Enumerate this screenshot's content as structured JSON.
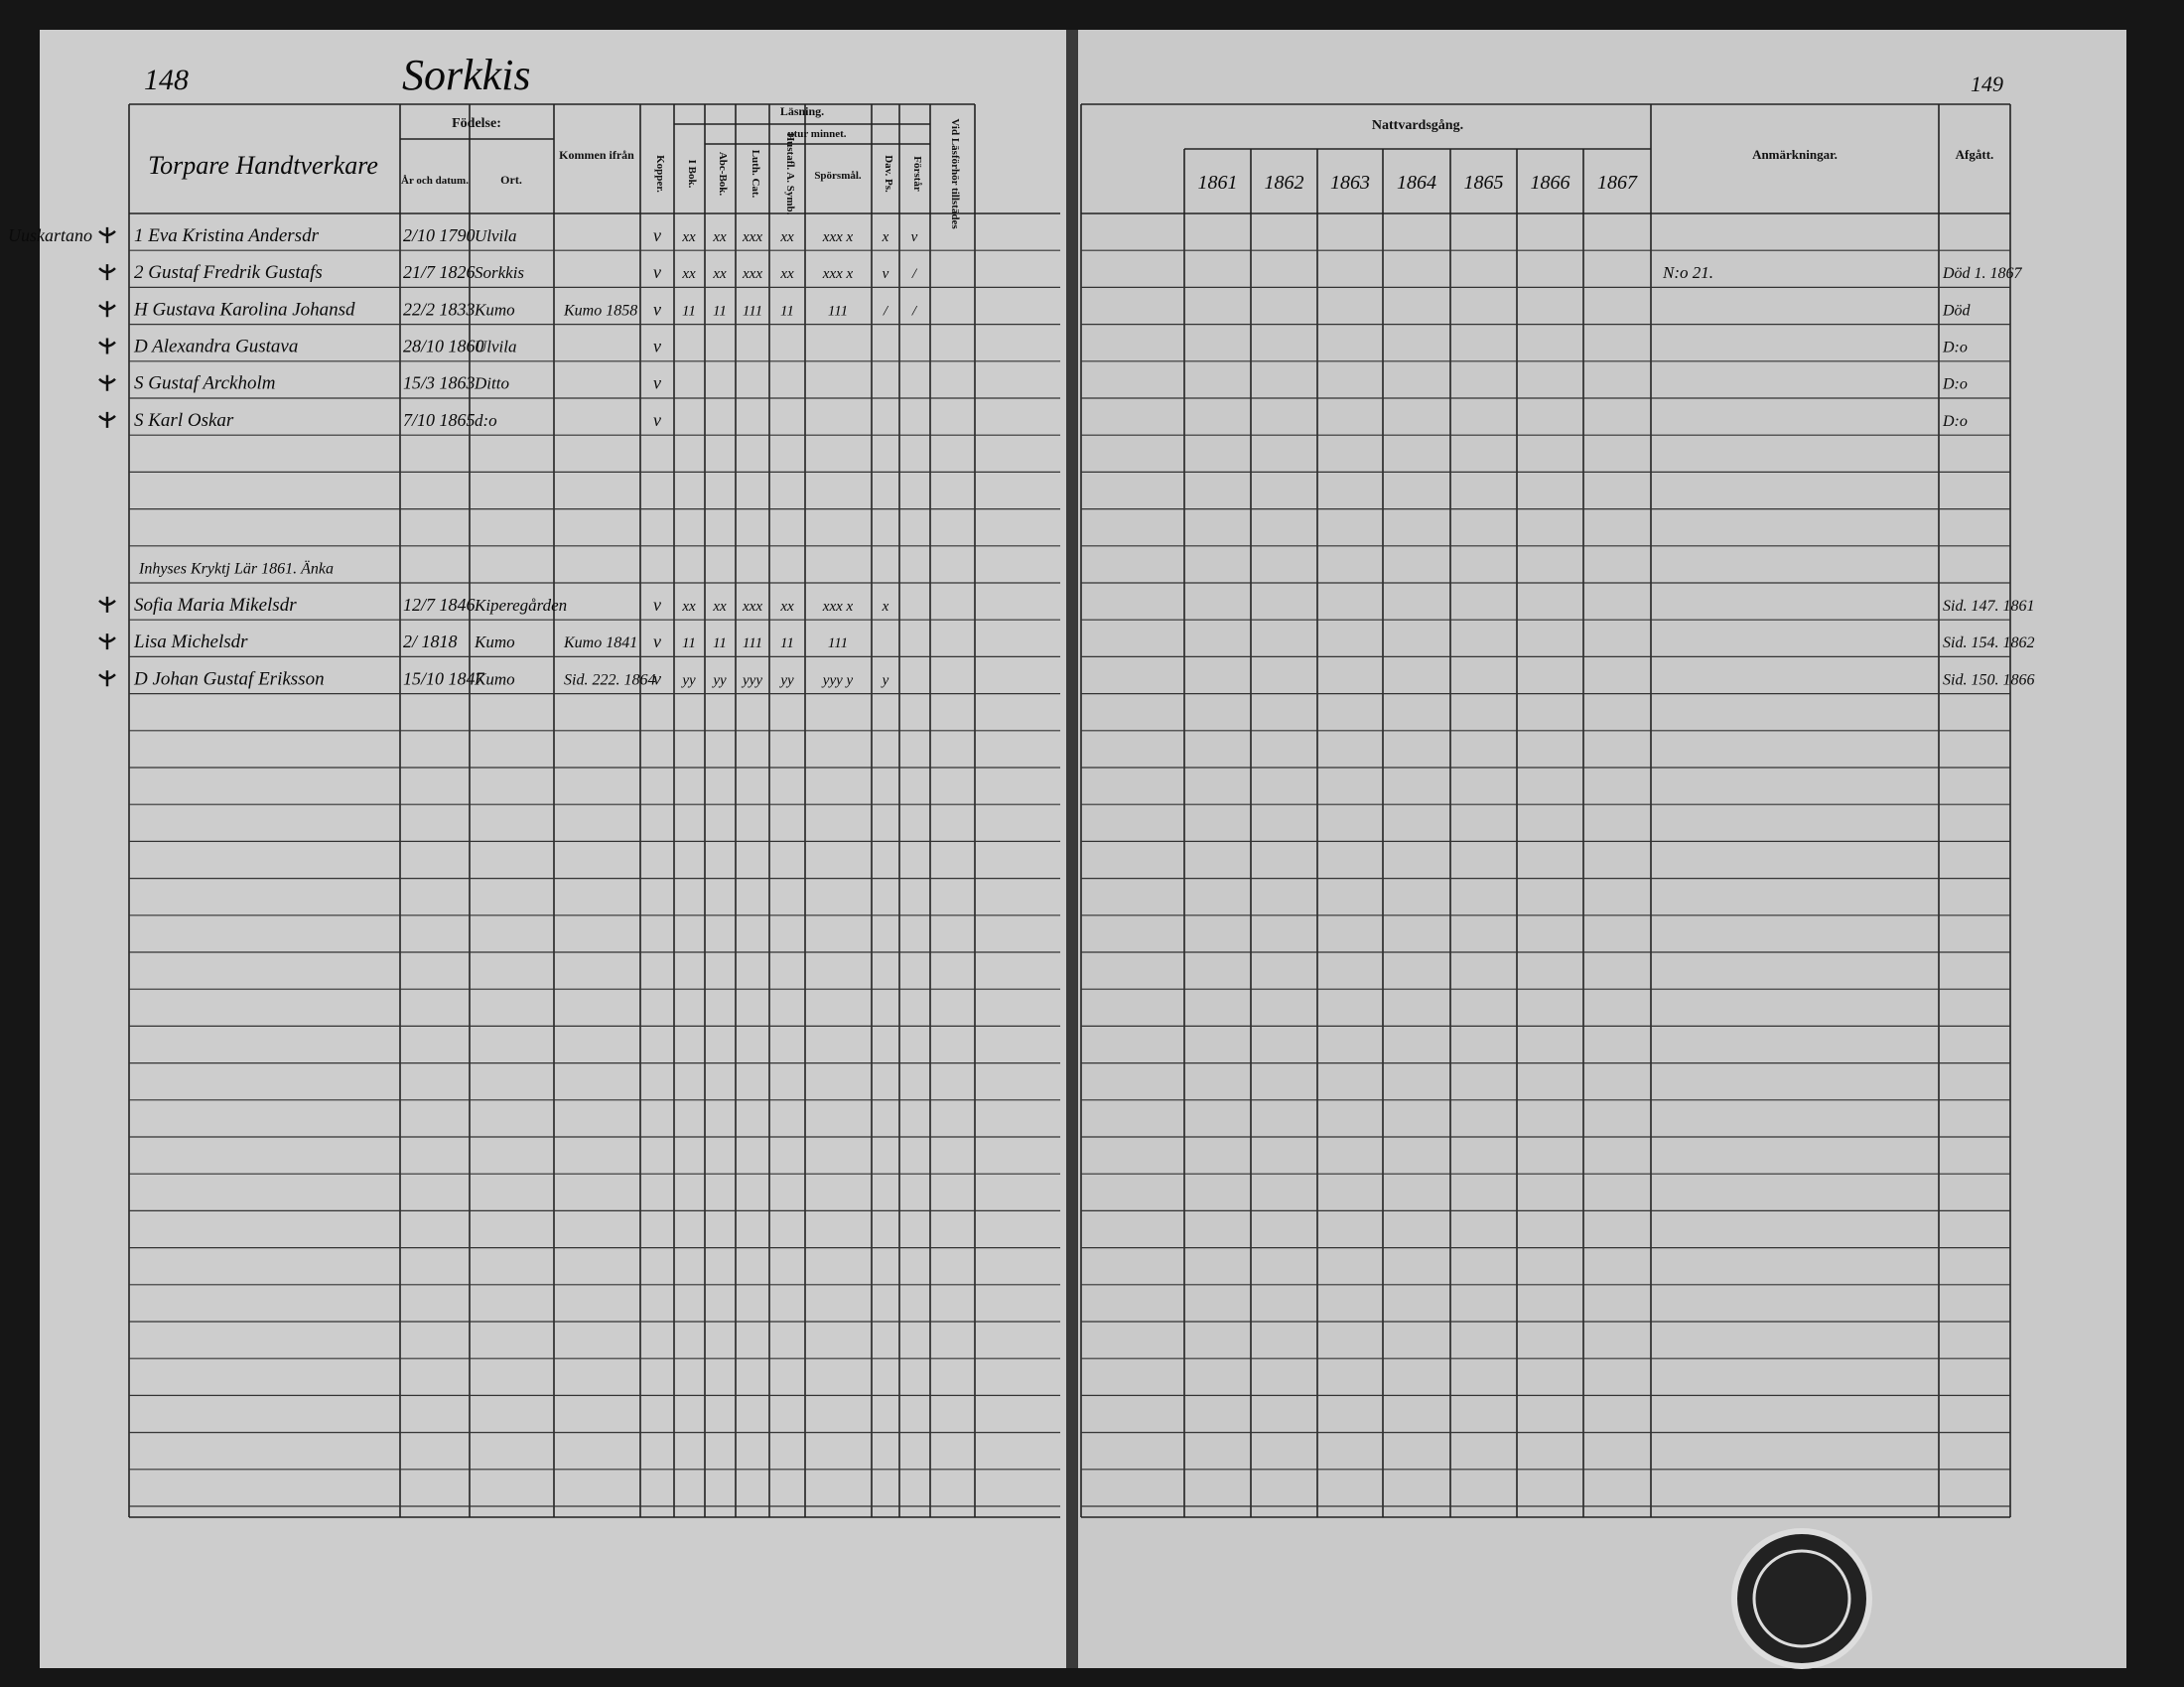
{
  "header": {
    "page_left": "148",
    "place": "Sorkkis",
    "page_right": "149"
  },
  "left_headers": {
    "name": "Torpare Handtverkare",
    "birth": "Födelse:",
    "year": "År och datum.",
    "place": "Ort.",
    "from": "Kommen ifrån",
    "kopper": "Kopper.",
    "reading": "Läsning.",
    "memory": "utur minnet.",
    "book": "I Bok.",
    "abc": "Abc-Bok.",
    "luth": "Luth. Cat.",
    "hust": "Hustafl. A. Symb.",
    "spor": "Spörsmål.",
    "dav": "Dav. Ps.",
    "forst": "Förstår",
    "vid": "Vid Läsförhör tillstädes"
  },
  "right_headers": {
    "communion": "Nattvardsgång.",
    "years": [
      "1861",
      "1862",
      "1863",
      "1864",
      "1865",
      "1866",
      "1867"
    ],
    "remarks": "Anmärkningar.",
    "left": "Afgått."
  },
  "farm": "Uuskartano",
  "group_note": "Inhyses Kryktj Lär 1861. Änka",
  "rows": [
    {
      "name": "1 Eva Kristina Andersdr",
      "birth": "2/10 1790",
      "place": "Ulvila",
      "kopper": "v",
      "reading": [
        "xx",
        "xx",
        "xxx",
        "xx",
        "xxx x",
        "x",
        "v"
      ]
    },
    {
      "name": "2 Gustaf Fredrik Gustafs",
      "birth": "21/7 1826",
      "place": "Sorkkis",
      "kopper": "v",
      "reading": [
        "xx",
        "xx",
        "xxx",
        "xx",
        "xxx x",
        "v",
        "/"
      ],
      "remark": "N:o 21.",
      "left": "Död 1. 1867"
    },
    {
      "name": "H Gustava Karolina Johansd",
      "birth": "22/2 1833",
      "place": "Kumo",
      "from": "Kumo 1858",
      "kopper": "v",
      "reading": [
        "11",
        "11",
        "111",
        "11",
        "111",
        "/",
        "/"
      ],
      "left": "Död"
    },
    {
      "name": "D Alexandra Gustava",
      "birth": "28/10 1860",
      "place": "Ulvila",
      "kopper": "v",
      "left": "D:o"
    },
    {
      "name": "S Gustaf Arckholm",
      "birth": "15/3 1863",
      "place": "Ditto",
      "kopper": "v",
      "left": "D:o"
    },
    {
      "name": "S Karl Oskar",
      "birth": "7/10 1865",
      "place": "d:o",
      "kopper": "v",
      "left": "D:o"
    },
    {
      "name": "Sofia Maria Mikelsdr",
      "birth": "12/7 1846",
      "place": "Kiperegården",
      "kopper": "v",
      "reading": [
        "xx",
        "xx",
        "xxx",
        "xx",
        "xxx x",
        "x"
      ],
      "left": "Sid. 147. 1861"
    },
    {
      "name": "Lisa Michelsdr",
      "birth": "2/ 1818",
      "place": "Kumo",
      "from": "Kumo 1841",
      "kopper": "v",
      "reading": [
        "11",
        "11",
        "111",
        "11",
        "111"
      ],
      "left": "Sid. 154. 1862"
    },
    {
      "name": "D Johan Gustaf Eriksson",
      "birth": "15/10 1847",
      "place": "Kumo",
      "from": "Sid. 222. 1864",
      "kopper": "v",
      "reading": [
        "yy",
        "yy",
        "yyy",
        "yy",
        "yyy y",
        "y"
      ],
      "left": "Sid. 150. 1866"
    }
  ]
}
